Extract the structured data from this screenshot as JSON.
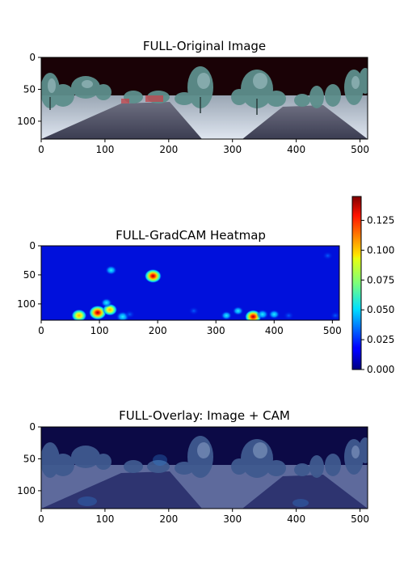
{
  "chart_data": [
    {
      "type": "heatmap",
      "title": "FULL-Original Image",
      "xlim": [
        0,
        512
      ],
      "ylim": [
        128,
        0
      ],
      "xticks": [
        0,
        100,
        200,
        300,
        400,
        500
      ],
      "yticks": [
        0,
        50,
        100
      ],
      "content": "street-scene photo"
    },
    {
      "type": "heatmap",
      "title": "FULL-GradCAM Heatmap",
      "xlim": [
        0,
        512
      ],
      "ylim": [
        128,
        0
      ],
      "xticks": [
        0,
        100,
        200,
        300,
        400,
        500
      ],
      "yticks": [
        0,
        50,
        100
      ],
      "colormap": "jet",
      "colorbar": {
        "range": [
          0.0,
          0.145
        ],
        "ticks": [
          "0.000",
          "0.025",
          "0.050",
          "0.075",
          "0.100",
          "0.125"
        ]
      },
      "hotspots": [
        {
          "x": 192,
          "y": 52,
          "value": 0.135
        },
        {
          "x": 120,
          "y": 42,
          "value": 0.055
        },
        {
          "x": 97,
          "y": 115,
          "value": 0.145
        },
        {
          "x": 118,
          "y": 110,
          "value": 0.1
        },
        {
          "x": 112,
          "y": 98,
          "value": 0.05
        },
        {
          "x": 65,
          "y": 120,
          "value": 0.11
        },
        {
          "x": 140,
          "y": 122,
          "value": 0.08
        },
        {
          "x": 152,
          "y": 118,
          "value": 0.04
        },
        {
          "x": 364,
          "y": 122,
          "value": 0.13
        },
        {
          "x": 380,
          "y": 118,
          "value": 0.06
        },
        {
          "x": 338,
          "y": 112,
          "value": 0.045
        },
        {
          "x": 318,
          "y": 120,
          "value": 0.045
        },
        {
          "x": 262,
          "y": 112,
          "value": 0.04
        },
        {
          "x": 400,
          "y": 118,
          "value": 0.05
        },
        {
          "x": 425,
          "y": 120,
          "value": 0.04
        },
        {
          "x": 492,
          "y": 17,
          "value": 0.04
        },
        {
          "x": 505,
          "y": 120,
          "value": 0.035
        }
      ]
    },
    {
      "type": "heatmap",
      "title": "FULL-Overlay: Image + CAM",
      "xlim": [
        0,
        512
      ],
      "ylim": [
        128,
        0
      ],
      "xticks": [
        0,
        100,
        200,
        300,
        400,
        500
      ],
      "yticks": [
        0,
        50,
        100
      ],
      "content": "street-scene photo blended with CAM"
    }
  ]
}
